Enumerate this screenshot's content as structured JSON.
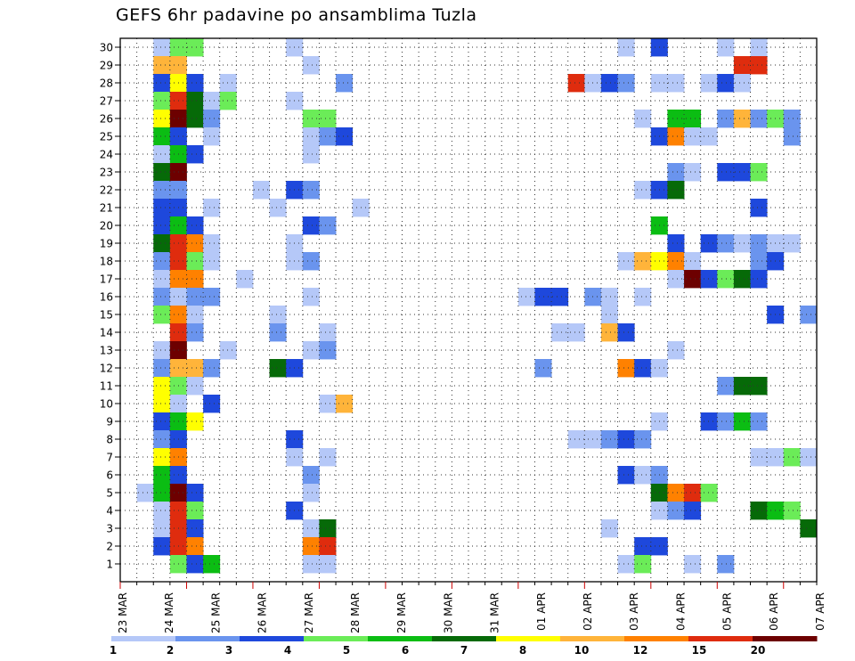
{
  "chart_data": {
    "type": "heatmap",
    "title": "GEFS 6hr padavine po ansamblima Tuzla",
    "y_members": [
      "1",
      "2",
      "3",
      "4",
      "5",
      "6",
      "7",
      "8",
      "9",
      "10",
      "11",
      "12",
      "13",
      "14",
      "15",
      "16",
      "17",
      "18",
      "19",
      "20",
      "21",
      "22",
      "23",
      "24",
      "25",
      "26",
      "27",
      "28",
      "29",
      "30"
    ],
    "x_dates": [
      "23 MAR",
      "24 MAR",
      "25 MAR",
      "26 MAR",
      "27 MAR",
      "28 MAR",
      "29 MAR",
      "30 MAR",
      "31 MAR",
      "01 APR",
      "02 APR",
      "03 APR",
      "04 APR",
      "05 APR",
      "06 APR",
      "07 APR"
    ],
    "x_step": "6 hr",
    "legend_ticks": [
      "1",
      "2",
      "3",
      "4",
      "5",
      "6",
      "7",
      "8",
      "10",
      "12",
      "15",
      "20"
    ],
    "palette": [
      "#b5c8f8",
      "#6a94ee",
      "#1e48dc",
      "#6bec58",
      "#0bbd13",
      "#066a08",
      "#ffff00",
      "#ffb43a",
      "#ff8100",
      "#df2c0e",
      "#6d0000"
    ],
    "cells": [
      [
        30,
        2,
        0
      ],
      [
        30,
        3,
        3
      ],
      [
        30,
        4,
        3
      ],
      [
        30,
        10,
        0
      ],
      [
        30,
        30,
        0
      ],
      [
        30,
        32,
        2
      ],
      [
        30,
        36,
        0
      ],
      [
        30,
        38,
        0
      ],
      [
        29,
        2,
        7
      ],
      [
        29,
        3,
        7
      ],
      [
        29,
        11,
        0
      ],
      [
        29,
        37,
        9
      ],
      [
        29,
        38,
        9
      ],
      [
        28,
        2,
        2
      ],
      [
        28,
        3,
        6
      ],
      [
        28,
        4,
        2
      ],
      [
        28,
        6,
        0
      ],
      [
        28,
        13,
        1
      ],
      [
        28,
        27,
        9
      ],
      [
        28,
        28,
        0
      ],
      [
        28,
        29,
        2
      ],
      [
        28,
        30,
        1
      ],
      [
        28,
        32,
        0
      ],
      [
        28,
        33,
        0
      ],
      [
        28,
        35,
        0
      ],
      [
        28,
        36,
        2
      ],
      [
        28,
        37,
        0
      ],
      [
        27,
        2,
        3
      ],
      [
        27,
        3,
        9
      ],
      [
        27,
        4,
        5
      ],
      [
        27,
        5,
        0
      ],
      [
        27,
        6,
        3
      ],
      [
        27,
        10,
        0
      ],
      [
        26,
        2,
        6
      ],
      [
        26,
        3,
        10
      ],
      [
        26,
        4,
        5
      ],
      [
        26,
        5,
        1
      ],
      [
        26,
        11,
        3
      ],
      [
        26,
        12,
        3
      ],
      [
        26,
        31,
        0
      ],
      [
        26,
        33,
        4
      ],
      [
        26,
        34,
        4
      ],
      [
        26,
        36,
        1
      ],
      [
        26,
        37,
        7
      ],
      [
        26,
        38,
        1
      ],
      [
        26,
        39,
        3
      ],
      [
        26,
        40,
        1
      ],
      [
        25,
        2,
        4
      ],
      [
        25,
        3,
        2
      ],
      [
        25,
        5,
        0
      ],
      [
        25,
        11,
        0
      ],
      [
        25,
        12,
        1
      ],
      [
        25,
        13,
        2
      ],
      [
        25,
        32,
        2
      ],
      [
        25,
        33,
        8
      ],
      [
        25,
        34,
        0
      ],
      [
        25,
        35,
        0
      ],
      [
        25,
        40,
        1
      ],
      [
        24,
        2,
        0
      ],
      [
        24,
        3,
        4
      ],
      [
        24,
        4,
        2
      ],
      [
        24,
        11,
        0
      ],
      [
        23,
        2,
        5
      ],
      [
        23,
        3,
        10
      ],
      [
        23,
        33,
        1
      ],
      [
        23,
        34,
        0
      ],
      [
        23,
        36,
        2
      ],
      [
        23,
        37,
        2
      ],
      [
        23,
        38,
        3
      ],
      [
        22,
        2,
        1
      ],
      [
        22,
        3,
        1
      ],
      [
        22,
        8,
        0
      ],
      [
        22,
        10,
        2
      ],
      [
        22,
        11,
        1
      ],
      [
        22,
        31,
        0
      ],
      [
        22,
        32,
        2
      ],
      [
        22,
        33,
        5
      ],
      [
        21,
        2,
        2
      ],
      [
        21,
        3,
        2
      ],
      [
        21,
        5,
        0
      ],
      [
        21,
        9,
        0
      ],
      [
        21,
        14,
        0
      ],
      [
        21,
        38,
        2
      ],
      [
        20,
        2,
        2
      ],
      [
        20,
        3,
        4
      ],
      [
        20,
        4,
        2
      ],
      [
        20,
        11,
        2
      ],
      [
        20,
        12,
        1
      ],
      [
        20,
        32,
        4
      ],
      [
        19,
        2,
        5
      ],
      [
        19,
        3,
        9
      ],
      [
        19,
        4,
        8
      ],
      [
        19,
        5,
        0
      ],
      [
        19,
        10,
        0
      ],
      [
        19,
        33,
        2
      ],
      [
        19,
        35,
        2
      ],
      [
        19,
        36,
        1
      ],
      [
        19,
        37,
        0
      ],
      [
        19,
        38,
        1
      ],
      [
        19,
        39,
        0
      ],
      [
        19,
        40,
        0
      ],
      [
        18,
        2,
        1
      ],
      [
        18,
        3,
        9
      ],
      [
        18,
        4,
        3
      ],
      [
        18,
        5,
        0
      ],
      [
        18,
        10,
        0
      ],
      [
        18,
        11,
        1
      ],
      [
        18,
        30,
        0
      ],
      [
        18,
        31,
        7
      ],
      [
        18,
        32,
        6
      ],
      [
        18,
        33,
        8
      ],
      [
        18,
        34,
        0
      ],
      [
        18,
        38,
        1
      ],
      [
        18,
        39,
        2
      ],
      [
        17,
        2,
        0
      ],
      [
        17,
        3,
        8
      ],
      [
        17,
        4,
        8
      ],
      [
        17,
        7,
        0
      ],
      [
        17,
        33,
        0
      ],
      [
        17,
        34,
        10
      ],
      [
        17,
        35,
        2
      ],
      [
        17,
        36,
        3
      ],
      [
        17,
        37,
        5
      ],
      [
        17,
        38,
        2
      ],
      [
        16,
        2,
        1
      ],
      [
        16,
        3,
        0
      ],
      [
        16,
        4,
        1
      ],
      [
        16,
        5,
        1
      ],
      [
        16,
        11,
        0
      ],
      [
        16,
        24,
        0
      ],
      [
        16,
        25,
        2
      ],
      [
        16,
        26,
        2
      ],
      [
        16,
        28,
        1
      ],
      [
        16,
        29,
        0
      ],
      [
        16,
        31,
        0
      ],
      [
        15,
        2,
        3
      ],
      [
        15,
        3,
        8
      ],
      [
        15,
        4,
        0
      ],
      [
        15,
        9,
        0
      ],
      [
        15,
        29,
        0
      ],
      [
        15,
        39,
        2
      ],
      [
        15,
        41,
        1
      ],
      [
        14,
        3,
        9
      ],
      [
        14,
        4,
        1
      ],
      [
        14,
        9,
        1
      ],
      [
        14,
        12,
        0
      ],
      [
        14,
        26,
        0
      ],
      [
        14,
        27,
        0
      ],
      [
        14,
        29,
        7
      ],
      [
        14,
        30,
        2
      ],
      [
        13,
        2,
        0
      ],
      [
        13,
        3,
        10
      ],
      [
        13,
        6,
        0
      ],
      [
        13,
        11,
        0
      ],
      [
        13,
        12,
        1
      ],
      [
        13,
        33,
        0
      ],
      [
        12,
        2,
        1
      ],
      [
        12,
        3,
        7
      ],
      [
        12,
        4,
        7
      ],
      [
        12,
        5,
        1
      ],
      [
        12,
        9,
        5
      ],
      [
        12,
        10,
        2
      ],
      [
        12,
        25,
        1
      ],
      [
        12,
        30,
        8
      ],
      [
        12,
        31,
        2
      ],
      [
        12,
        32,
        0
      ],
      [
        11,
        2,
        6
      ],
      [
        11,
        3,
        3
      ],
      [
        11,
        4,
        0
      ],
      [
        11,
        36,
        1
      ],
      [
        11,
        37,
        5
      ],
      [
        11,
        38,
        5
      ],
      [
        10,
        2,
        6
      ],
      [
        10,
        3,
        0
      ],
      [
        10,
        5,
        2
      ],
      [
        10,
        12,
        0
      ],
      [
        10,
        13,
        7
      ],
      [
        9,
        2,
        2
      ],
      [
        9,
        3,
        4
      ],
      [
        9,
        4,
        6
      ],
      [
        9,
        32,
        0
      ],
      [
        9,
        35,
        2
      ],
      [
        9,
        36,
        1
      ],
      [
        9,
        37,
        4
      ],
      [
        9,
        38,
        1
      ],
      [
        8,
        2,
        1
      ],
      [
        8,
        3,
        2
      ],
      [
        8,
        10,
        2
      ],
      [
        8,
        27,
        0
      ],
      [
        8,
        28,
        0
      ],
      [
        8,
        29,
        1
      ],
      [
        8,
        30,
        2
      ],
      [
        8,
        31,
        1
      ],
      [
        7,
        2,
        6
      ],
      [
        7,
        3,
        8
      ],
      [
        7,
        10,
        0
      ],
      [
        7,
        12,
        0
      ],
      [
        7,
        38,
        0
      ],
      [
        7,
        39,
        0
      ],
      [
        7,
        40,
        3
      ],
      [
        7,
        41,
        0
      ],
      [
        6,
        2,
        4
      ],
      [
        6,
        3,
        2
      ],
      [
        6,
        11,
        1
      ],
      [
        6,
        30,
        2
      ],
      [
        6,
        31,
        0
      ],
      [
        6,
        32,
        1
      ],
      [
        5,
        1,
        0
      ],
      [
        5,
        2,
        4
      ],
      [
        5,
        3,
        10
      ],
      [
        5,
        4,
        2
      ],
      [
        5,
        11,
        0
      ],
      [
        5,
        32,
        5
      ],
      [
        5,
        33,
        8
      ],
      [
        5,
        34,
        9
      ],
      [
        5,
        35,
        3
      ],
      [
        4,
        2,
        0
      ],
      [
        4,
        3,
        9
      ],
      [
        4,
        4,
        3
      ],
      [
        4,
        10,
        2
      ],
      [
        4,
        32,
        0
      ],
      [
        4,
        33,
        1
      ],
      [
        4,
        34,
        2
      ],
      [
        4,
        38,
        5
      ],
      [
        4,
        39,
        4
      ],
      [
        4,
        40,
        3
      ],
      [
        3,
        2,
        0
      ],
      [
        3,
        3,
        9
      ],
      [
        3,
        4,
        2
      ],
      [
        3,
        11,
        0
      ],
      [
        3,
        12,
        5
      ],
      [
        3,
        29,
        0
      ],
      [
        3,
        41,
        5
      ],
      [
        2,
        2,
        2
      ],
      [
        2,
        3,
        9
      ],
      [
        2,
        4,
        8
      ],
      [
        2,
        11,
        8
      ],
      [
        2,
        12,
        9
      ],
      [
        2,
        31,
        2
      ],
      [
        2,
        32,
        2
      ],
      [
        1,
        3,
        3
      ],
      [
        1,
        4,
        2
      ],
      [
        1,
        5,
        4
      ],
      [
        1,
        11,
        0
      ],
      [
        1,
        12,
        0
      ],
      [
        1,
        30,
        0
      ],
      [
        1,
        31,
        3
      ],
      [
        1,
        34,
        0
      ],
      [
        1,
        36,
        1
      ]
    ]
  }
}
